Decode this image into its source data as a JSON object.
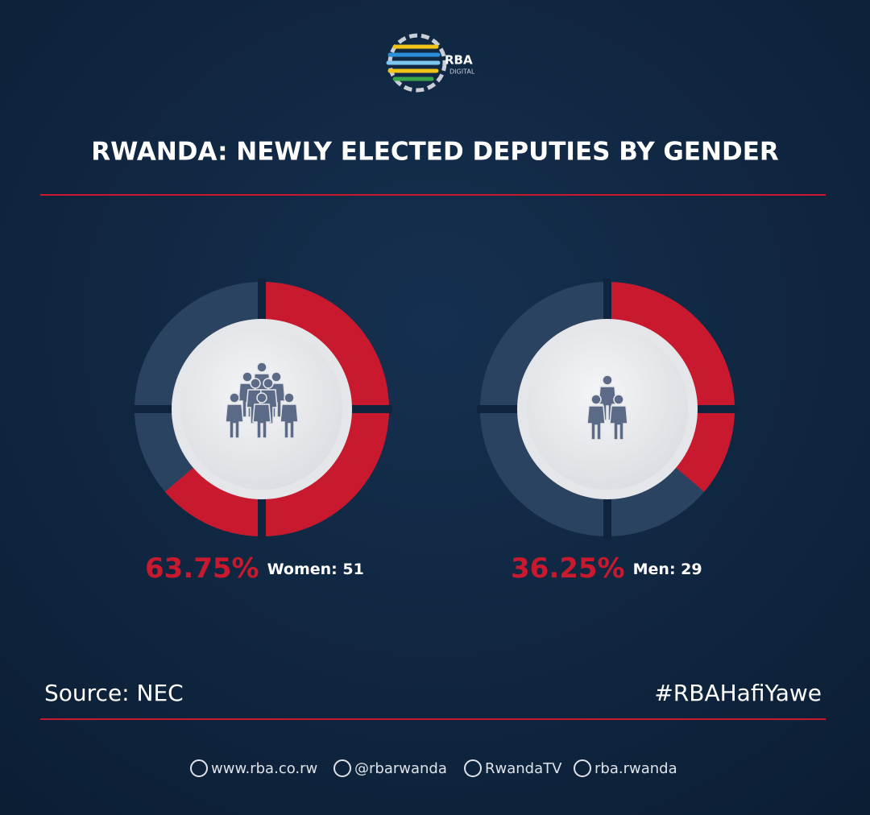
{
  "header": {
    "logo": {
      "name": "RBA",
      "sub": "DIGITAL"
    },
    "title": "RWANDA: NEWLY ELECTED DEPUTIES BY GENDER"
  },
  "chart_data": [
    {
      "type": "donut",
      "categories": [
        "Women: 51"
      ],
      "values": [
        63.75
      ],
      "value_labels": [
        "63.75%"
      ],
      "color": "#c8192e",
      "track_color": "#2a4360"
    },
    {
      "type": "donut",
      "categories": [
        "Men: 29"
      ],
      "values": [
        36.25
      ],
      "value_labels": [
        "36.25%"
      ],
      "color": "#c8192e",
      "track_color": "#2a4360"
    }
  ],
  "footer": {
    "source": "Source: NEC",
    "hashtag": "#RBAHafiYawe",
    "links": [
      "www.rba.co.rw",
      "@rbarwanda",
      "RwandaTV",
      "rba.rwanda"
    ]
  }
}
